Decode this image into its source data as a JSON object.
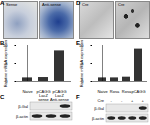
{
  "figure": {
    "A": {
      "label": "A",
      "images": [
        "Sense",
        "Anti-sense"
      ]
    },
    "D": {
      "label": "D",
      "images": [
        "Cre",
        "Cre"
      ]
    },
    "C": {
      "label": "C",
      "bands": [
        {
          "name": "β-Gal",
          "present": [
            false,
            false,
            true
          ]
        },
        {
          "name": "β-actin",
          "present": [
            true,
            true,
            true
          ]
        }
      ]
    },
    "F": {
      "label": "F",
      "cre": {
        "label": "Cre",
        "signs": [
          "-",
          "-",
          "+",
          "+"
        ]
      },
      "bands": [
        {
          "name": "β-Gal",
          "present": [
            false,
            false,
            false,
            true
          ]
        },
        {
          "name": "β-actin",
          "present": [
            true,
            true,
            true,
            true
          ]
        }
      ]
    }
  },
  "chart_data": [
    {
      "type": "bar",
      "title": "B",
      "y_label": "Relative mRNA expression",
      "categories": [
        "Naive",
        "pCAGG LacZ sense",
        "pCAGG LacZ Anti-sense"
      ],
      "values": [
        1,
        1.1,
        8.5
      ],
      "color": "#333333",
      "ylim": [
        0,
        10
      ],
      "yticks": [
        0,
        5,
        10
      ],
      "grid": false
    },
    {
      "type": "bar",
      "title": "E",
      "y_label": "Relative mRNA expression",
      "categories": [
        "Naive",
        "Rosa",
        "Rosa",
        "pCAGG"
      ],
      "values": [
        1,
        1,
        1.2,
        9
      ],
      "color": "#333333",
      "ylim": [
        0,
        10
      ],
      "yticks": [
        0,
        5,
        10
      ],
      "grid": false
    }
  ]
}
